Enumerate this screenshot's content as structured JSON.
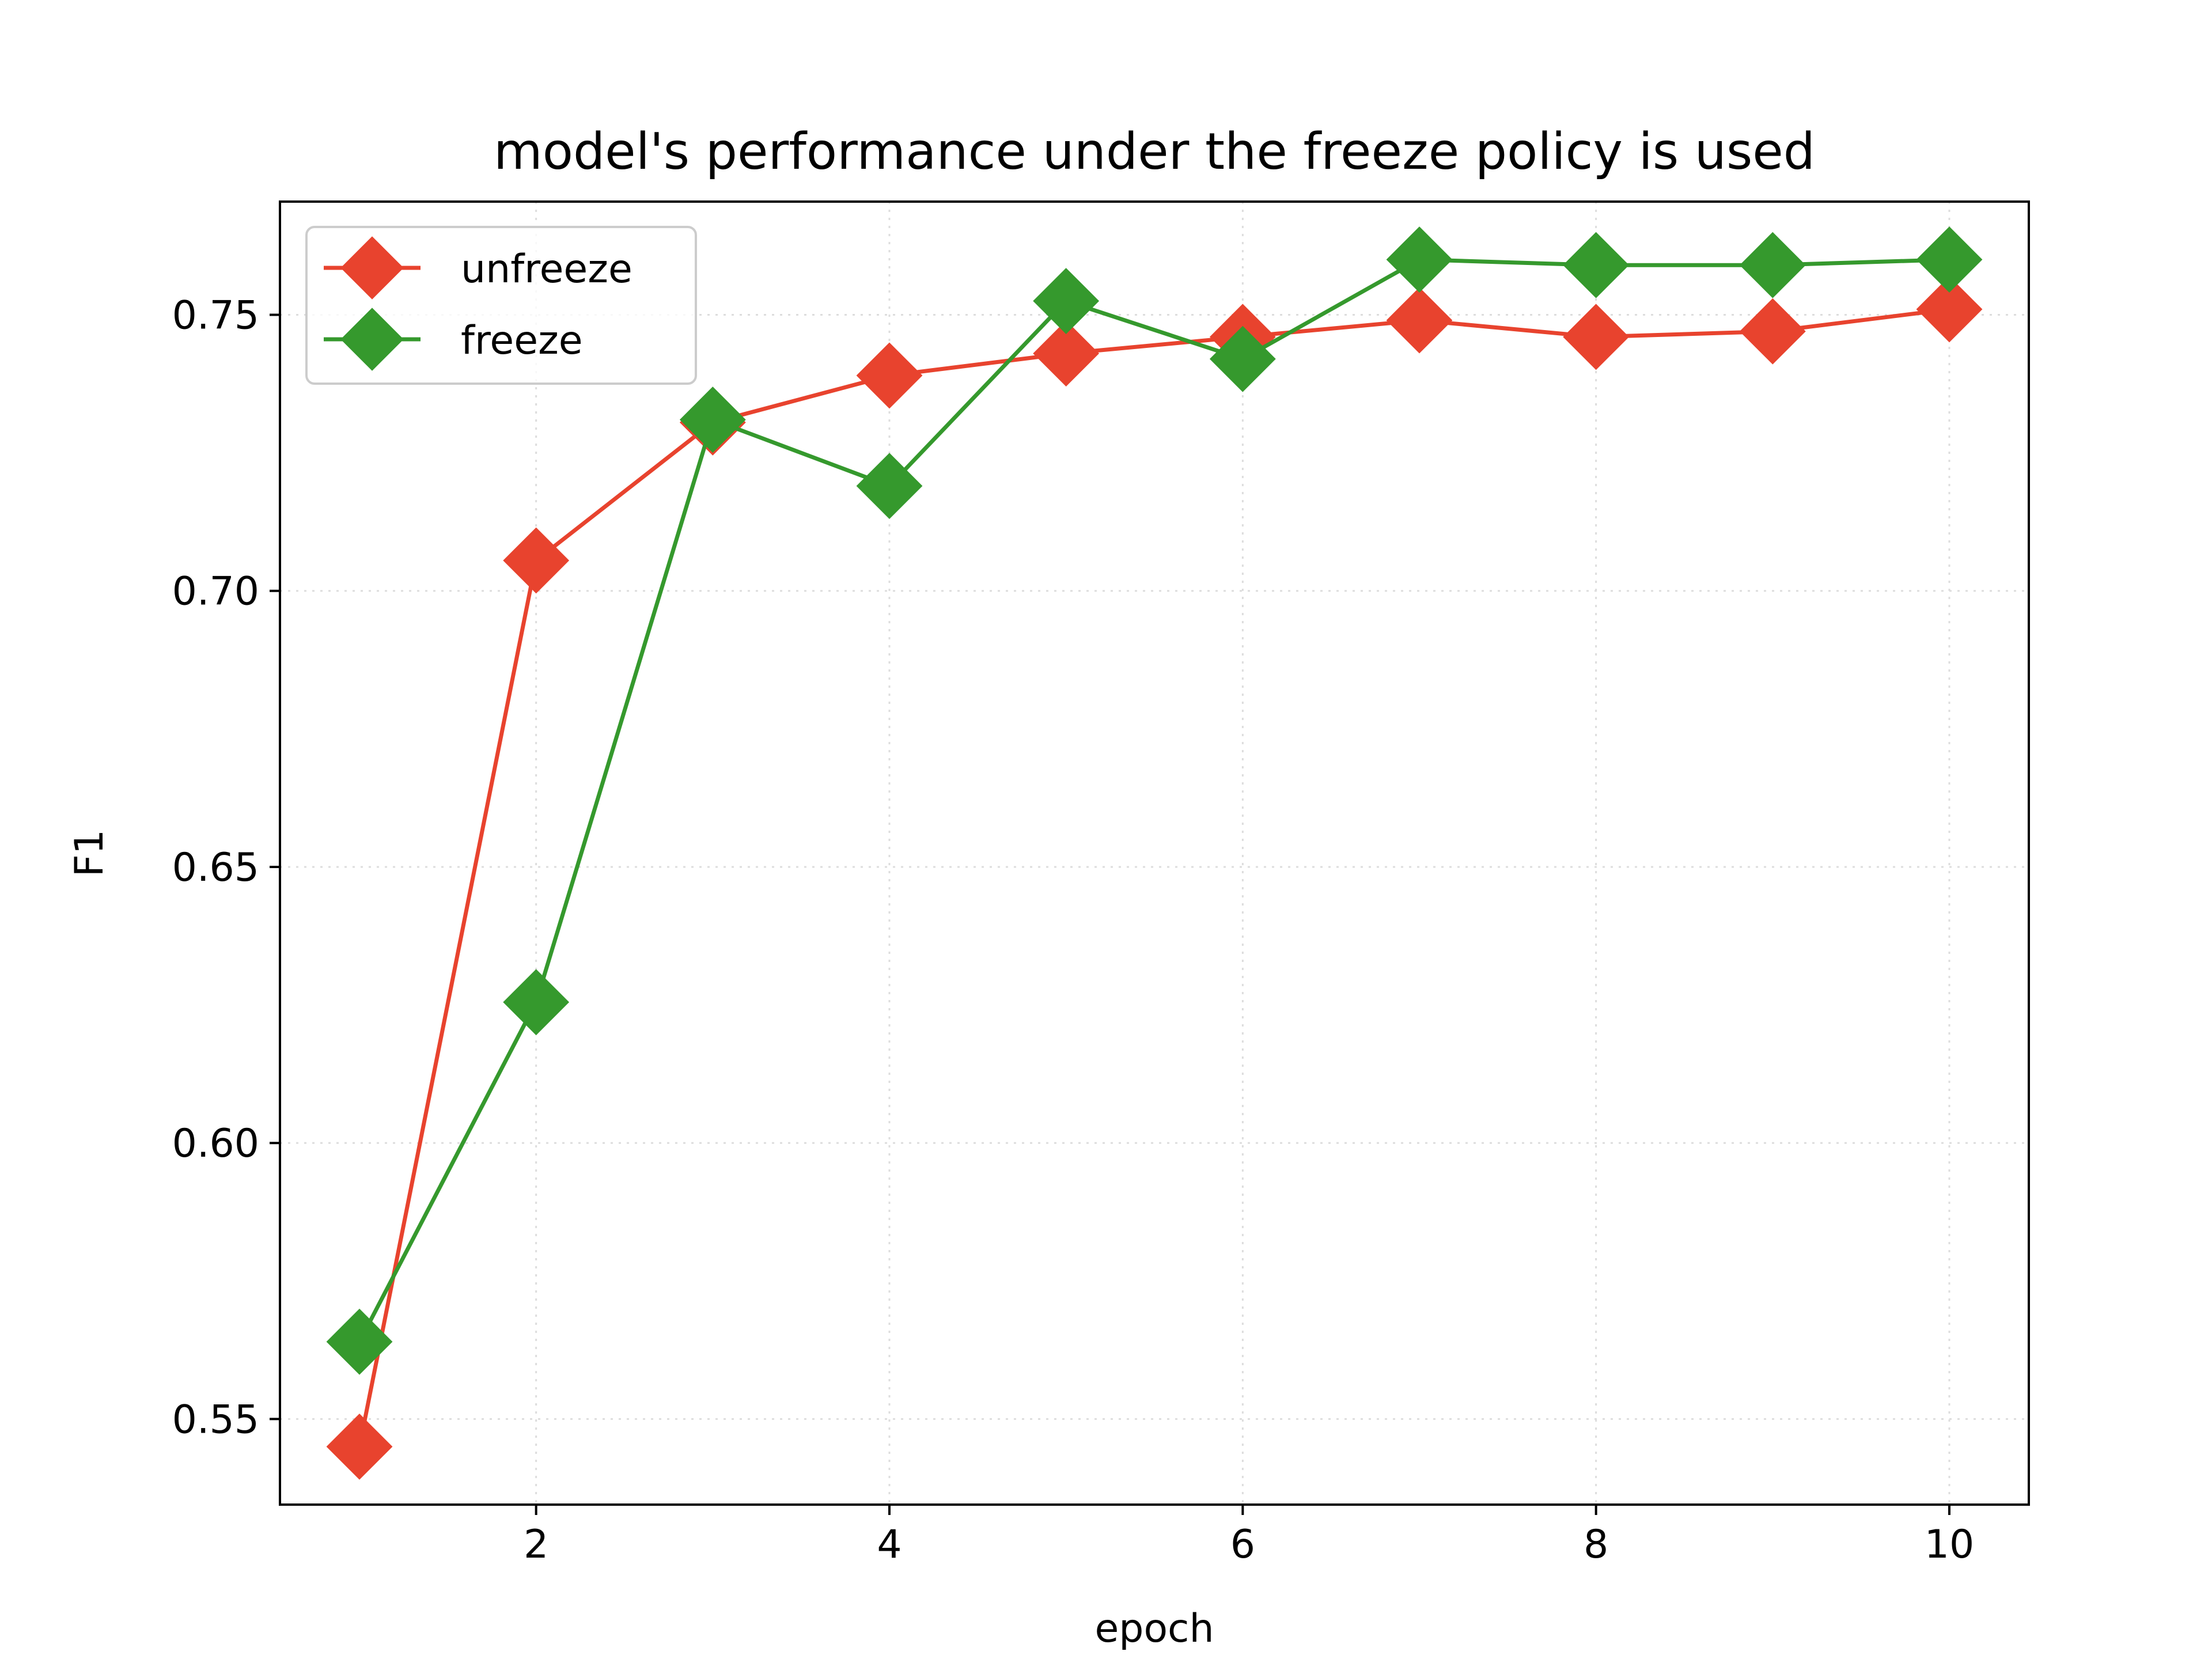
{
  "chart_data": {
    "type": "line",
    "title": "model's performance under the freeze policy is used",
    "xlabel": "epoch",
    "ylabel": "F1",
    "x": [
      1,
      2,
      3,
      4,
      5,
      6,
      7,
      8,
      9,
      10
    ],
    "xlim": [
      0.55,
      10.45
    ],
    "ylim": [
      0.5345,
      0.7705
    ],
    "xticks": [
      2,
      4,
      6,
      8,
      10
    ],
    "xtick_labels": [
      "2",
      "4",
      "6",
      "8",
      "10"
    ],
    "yticks": [
      0.55,
      0.6,
      0.65,
      0.7,
      0.75
    ],
    "ytick_labels": [
      "0.55",
      "0.60",
      "0.65",
      "0.70",
      "0.75"
    ],
    "grid": true,
    "legend_position": "upper-left",
    "series": [
      {
        "name": "unfreeze",
        "color": "#e8432e",
        "marker": "diamond",
        "values": [
          0.545,
          0.7055,
          0.7305,
          0.739,
          0.743,
          0.746,
          0.749,
          0.746,
          0.747,
          0.751
        ]
      },
      {
        "name": "freeze",
        "color": "#35992d",
        "marker": "diamond",
        "values": [
          0.564,
          0.6255,
          0.731,
          0.719,
          0.7525,
          0.742,
          0.76,
          0.759,
          0.759,
          0.76
        ]
      }
    ]
  }
}
